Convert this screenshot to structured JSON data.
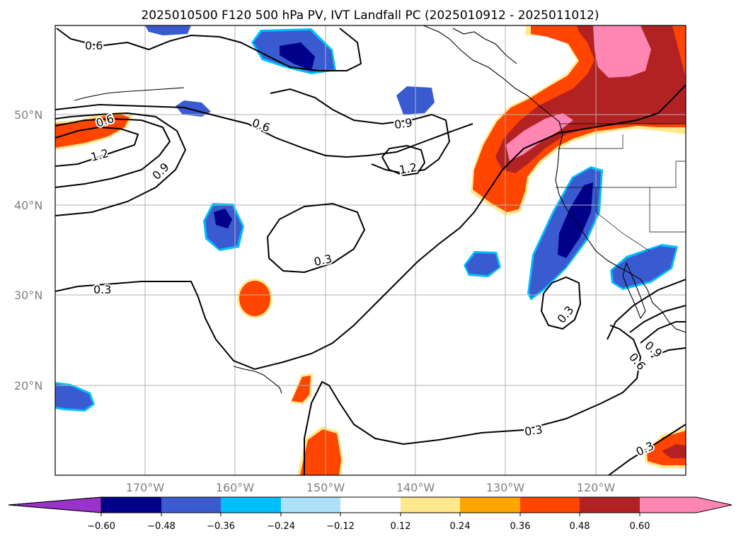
{
  "title": "2025010500 F120 500 hPa PV, IVT Landfall PC (2025010912 - 2025011012)",
  "lat_labels": [
    "50°N",
    "40°N",
    "30°N",
    "20°N"
  ],
  "lon_labels": [
    "170°W",
    "160°W",
    "150°W",
    "140°W",
    "130°W",
    "120°W"
  ],
  "contour_labels": [
    "0.6",
    "0.6",
    "1.2",
    "0.9",
    "0.6",
    "0.9",
    "1.2",
    "0.3",
    "0.3",
    "0.3",
    "0.3",
    "0.9",
    "0.6",
    "0.3"
  ],
  "colorbar": {
    "ticks": [
      "−0.60",
      "−0.48",
      "−0.36",
      "−0.24",
      "−0.12",
      "0.12",
      "0.24",
      "0.36",
      "0.48",
      "0.60"
    ],
    "colors": [
      "#9a33cc",
      "#00008b",
      "#3a5bcf",
      "#00bfff",
      "#ade1f9",
      "#ffffff",
      "#ffe88c",
      "#ffa500",
      "#ff4500",
      "#b22222",
      "#ff85b3"
    ]
  },
  "map": {
    "region": "North Pacific and western North America",
    "lat_range": [
      10,
      60
    ],
    "lon_range": [
      -180,
      -110
    ],
    "gridlines": true,
    "fill_field": "IVT Landfall PC (shaded)",
    "contour_field": "500 hPa PV (black contours)"
  }
}
